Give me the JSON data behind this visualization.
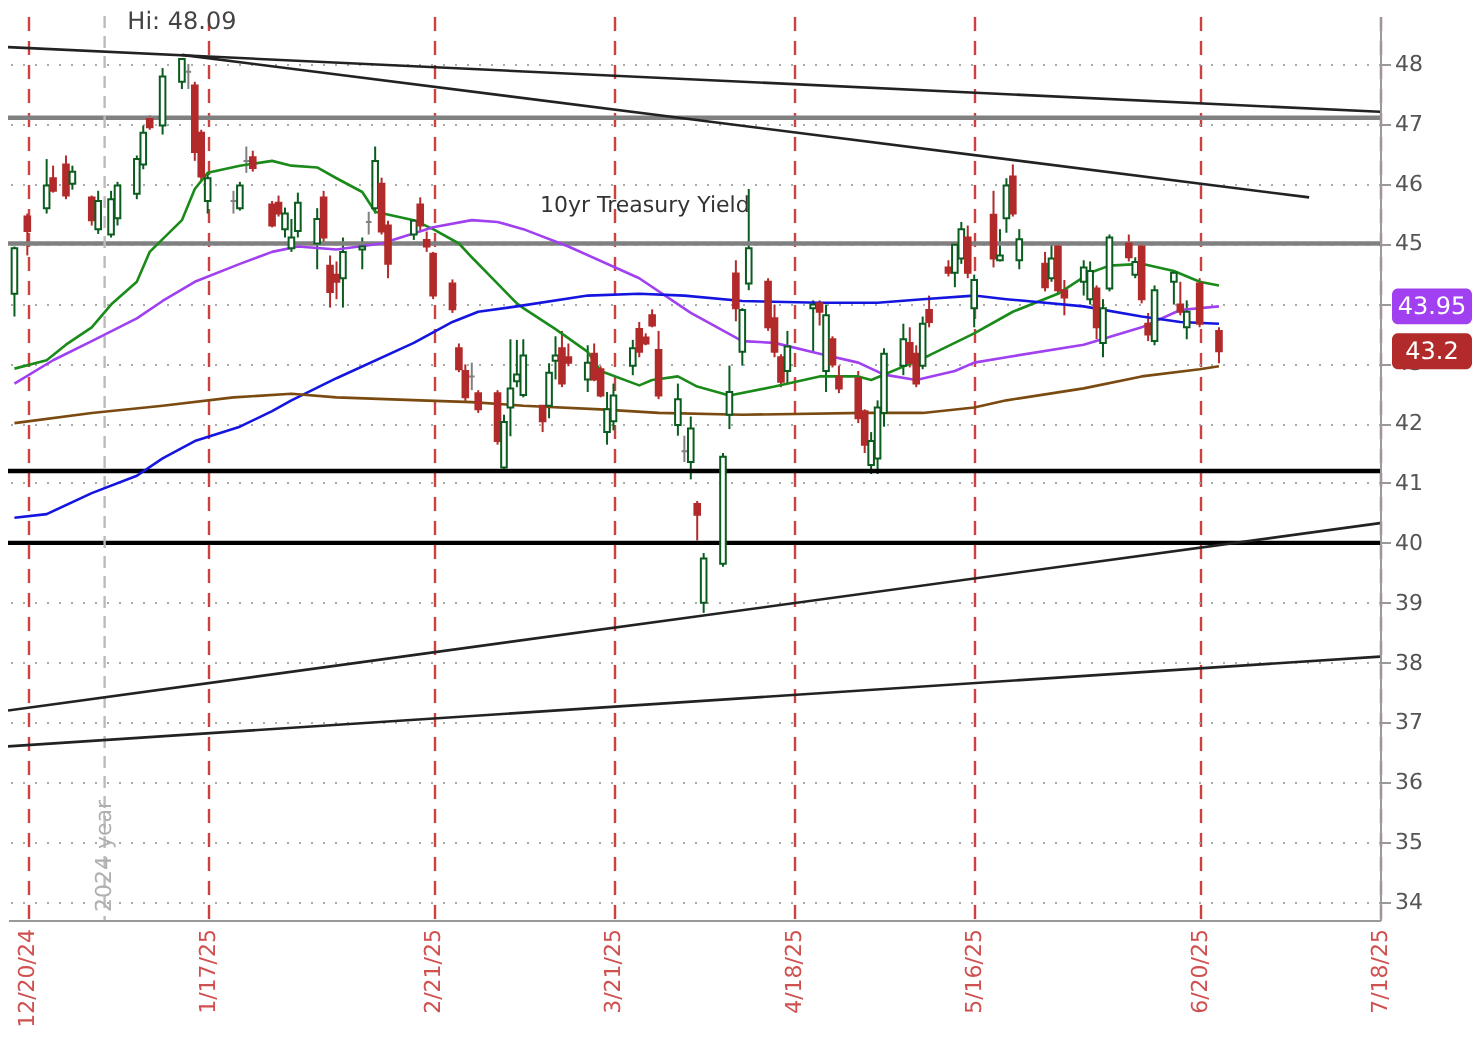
{
  "chart_data": {
    "type": "candlestick",
    "x": [
      "2024-12-18",
      "2024-12-20",
      "2024-12-23",
      "2024-12-24",
      "2024-12-26",
      "2024-12-27",
      "2024-12-30",
      "2024-12-31",
      "2025-01-02",
      "2025-01-03",
      "2025-01-06",
      "2025-01-07",
      "2025-01-08",
      "2025-01-10",
      "2025-01-13",
      "2025-01-14",
      "2025-01-15",
      "2025-01-16",
      "2025-01-17",
      "2025-01-21",
      "2025-01-22",
      "2025-01-23",
      "2025-01-24",
      "2025-01-27",
      "2025-01-28",
      "2025-01-29",
      "2025-01-30",
      "2025-01-31",
      "2025-02-03",
      "2025-02-04",
      "2025-02-05",
      "2025-02-06",
      "2025-02-07",
      "2025-02-10",
      "2025-02-11",
      "2025-02-12",
      "2025-02-13",
      "2025-02-14",
      "2025-02-18",
      "2025-02-19",
      "2025-02-20",
      "2025-02-21",
      "2025-02-24",
      "2025-02-25",
      "2025-02-26",
      "2025-02-27",
      "2025-02-28",
      "2025-03-03",
      "2025-03-04",
      "2025-03-05",
      "2025-03-06",
      "2025-03-07",
      "2025-03-10",
      "2025-03-11",
      "2025-03-12",
      "2025-03-13",
      "2025-03-14",
      "2025-03-17",
      "2025-03-18",
      "2025-03-19",
      "2025-03-20",
      "2025-03-21",
      "2025-03-24",
      "2025-03-25",
      "2025-03-26",
      "2025-03-27",
      "2025-03-28",
      "2025-03-31",
      "2025-04-01",
      "2025-04-02",
      "2025-04-03",
      "2025-04-04",
      "2025-04-07",
      "2025-04-08",
      "2025-04-09",
      "2025-04-10",
      "2025-04-11",
      "2025-04-14",
      "2025-04-15",
      "2025-04-16",
      "2025-04-17",
      "2025-04-21",
      "2025-04-22",
      "2025-04-23",
      "2025-04-24",
      "2025-04-25",
      "2025-04-28",
      "2025-04-29",
      "2025-04-30",
      "2025-05-01",
      "2025-05-02",
      "2025-05-05",
      "2025-05-06",
      "2025-05-07",
      "2025-05-08",
      "2025-05-09",
      "2025-05-12",
      "2025-05-13",
      "2025-05-14",
      "2025-05-15",
      "2025-05-16",
      "2025-05-19",
      "2025-05-20",
      "2025-05-21",
      "2025-05-22",
      "2025-05-23",
      "2025-05-27",
      "2025-05-28",
      "2025-05-29",
      "2025-05-30",
      "2025-06-02",
      "2025-06-03",
      "2025-06-04",
      "2025-06-05",
      "2025-06-06",
      "2025-06-09",
      "2025-06-10",
      "2025-06-11",
      "2025-06-12",
      "2025-06-13",
      "2025-06-16",
      "2025-06-17",
      "2025-06-18",
      "2025-06-20",
      "2025-06-23"
    ],
    "ohlc": [
      [
        44.16,
        44.95,
        43.78,
        44.92
      ],
      [
        45.45,
        45.5,
        44.8,
        45.21
      ],
      [
        45.59,
        46.41,
        45.5,
        45.97
      ],
      [
        46.09,
        46.3,
        45.85,
        45.88
      ],
      [
        46.32,
        46.47,
        45.74,
        45.8
      ],
      [
        46.0,
        46.3,
        45.9,
        46.2
      ],
      [
        45.77,
        45.8,
        45.3,
        45.39
      ],
      [
        45.24,
        45.88,
        45.16,
        45.71
      ],
      [
        45.15,
        45.88,
        45.1,
        45.74
      ],
      [
        45.42,
        46.03,
        45.3,
        45.97
      ],
      [
        45.83,
        46.47,
        45.74,
        46.41
      ],
      [
        46.32,
        46.97,
        46.24,
        46.85
      ],
      [
        47.08,
        47.14,
        46.9,
        46.94
      ],
      [
        46.97,
        47.93,
        46.82,
        47.79
      ],
      [
        47.7,
        48.09,
        47.58,
        48.08
      ],
      [
        47.87,
        48.0,
        47.58,
        47.87
      ],
      [
        47.64,
        47.7,
        46.38,
        46.53
      ],
      [
        46.85,
        46.9,
        46.03,
        46.12
      ],
      [
        45.71,
        46.18,
        45.5,
        46.09
      ],
      [
        45.71,
        45.88,
        45.5,
        45.71
      ],
      [
        45.59,
        46.03,
        45.55,
        45.97
      ],
      [
        46.38,
        46.62,
        46.18,
        46.38
      ],
      [
        46.44,
        46.55,
        46.2,
        46.26
      ],
      [
        45.65,
        45.71,
        45.27,
        45.3
      ],
      [
        45.68,
        45.8,
        45.45,
        45.5
      ],
      [
        45.24,
        45.6,
        45.1,
        45.5
      ],
      [
        44.92,
        45.41,
        44.86,
        45.1
      ],
      [
        45.21,
        45.85,
        45.1,
        45.68
      ],
      [
        45.0,
        45.59,
        44.57,
        45.41
      ],
      [
        45.77,
        45.88,
        45.0,
        45.1
      ],
      [
        44.63,
        44.8,
        43.93,
        44.19
      ],
      [
        44.48,
        44.7,
        44.07,
        44.36
      ],
      [
        44.42,
        45.1,
        43.93,
        44.86
      ],
      [
        44.9,
        45.1,
        44.57,
        44.95
      ],
      [
        45.36,
        45.53,
        45.15,
        45.36
      ],
      [
        45.59,
        46.62,
        45.5,
        46.38
      ],
      [
        46.0,
        46.1,
        45.15,
        45.2
      ],
      [
        45.3,
        45.38,
        44.42,
        44.66
      ],
      [
        45.15,
        45.4,
        45.06,
        45.38
      ],
      [
        45.65,
        45.77,
        45.2,
        45.3
      ],
      [
        45.06,
        45.2,
        44.86,
        44.95
      ],
      [
        44.83,
        44.86,
        44.07,
        44.13
      ],
      [
        44.33,
        44.4,
        43.84,
        43.9
      ],
      [
        43.25,
        43.33,
        42.85,
        42.9
      ],
      [
        42.87,
        42.98,
        42.37,
        42.43
      ],
      [
        42.78,
        43.01,
        42.55,
        42.78
      ],
      [
        42.5,
        42.55,
        42.17,
        42.23
      ],
      [
        42.5,
        42.55,
        41.64,
        41.7
      ],
      [
        41.26,
        42.14,
        41.2,
        42.02
      ],
      [
        42.26,
        43.4,
        41.78,
        42.58
      ],
      [
        42.7,
        43.39,
        42.6,
        42.81
      ],
      [
        42.47,
        43.4,
        42.43,
        43.13
      ],
      [
        42.29,
        42.3,
        41.85,
        42.03
      ],
      [
        42.29,
        43.0,
        42.08,
        42.84
      ],
      [
        43.04,
        43.45,
        42.73,
        43.13
      ],
      [
        43.25,
        43.54,
        42.6,
        42.66
      ],
      [
        43.1,
        43.33,
        42.95,
        43.01
      ],
      [
        42.73,
        43.3,
        42.52,
        43.01
      ],
      [
        43.16,
        43.33,
        42.7,
        42.73
      ],
      [
        42.9,
        42.95,
        42.43,
        42.46
      ],
      [
        41.85,
        42.52,
        41.64,
        42.23
      ],
      [
        42.03,
        42.66,
        41.88,
        42.46
      ],
      [
        42.96,
        43.39,
        42.8,
        43.25
      ],
      [
        43.57,
        43.69,
        43.1,
        43.19
      ],
      [
        43.43,
        43.5,
        43.3,
        43.33
      ],
      [
        43.8,
        43.9,
        43.6,
        43.63
      ],
      [
        43.22,
        43.54,
        42.4,
        42.46
      ],
      [
        41.97,
        42.66,
        41.79,
        42.4
      ],
      [
        41.53,
        41.79,
        41.35,
        41.53
      ],
      [
        41.35,
        42.11,
        41.06,
        41.91
      ],
      [
        40.65,
        40.7,
        40.04,
        40.47
      ],
      [
        39.0,
        39.83,
        38.83,
        39.74
      ],
      [
        39.65,
        41.5,
        39.6,
        41.44
      ],
      [
        42.14,
        42.96,
        41.9,
        42.52
      ],
      [
        44.5,
        44.72,
        43.7,
        43.92
      ],
      [
        43.19,
        43.92,
        42.96,
        43.89
      ],
      [
        44.33,
        45.91,
        44.22,
        44.92
      ],
      [
        44.36,
        44.42,
        43.54,
        43.6
      ],
      [
        43.75,
        43.98,
        43.1,
        43.19
      ],
      [
        43.1,
        43.15,
        42.6,
        42.69
      ],
      [
        42.87,
        43.54,
        42.66,
        43.28
      ],
      [
        43.92,
        44.05,
        43.19,
        43.98
      ],
      [
        44.0,
        44.05,
        43.63,
        43.86
      ],
      [
        42.87,
        43.98,
        42.52,
        43.8
      ],
      [
        43.4,
        43.45,
        42.93,
        42.98
      ],
      [
        42.78,
        42.96,
        42.5,
        42.58
      ],
      [
        42.75,
        42.87,
        42.0,
        42.08
      ],
      [
        42.2,
        42.23,
        41.5,
        41.64
      ],
      [
        41.3,
        41.85,
        41.15,
        41.7
      ],
      [
        41.41,
        42.38,
        41.15,
        42.26
      ],
      [
        42.17,
        43.25,
        41.94,
        43.16
      ],
      [
        42.96,
        43.66,
        42.8,
        43.4
      ],
      [
        43.34,
        43.6,
        42.93,
        43.01
      ],
      [
        43.16,
        43.3,
        42.6,
        42.66
      ],
      [
        42.96,
        43.78,
        42.9,
        43.66
      ],
      [
        43.89,
        44.13,
        43.6,
        43.69
      ],
      [
        44.6,
        44.72,
        44.45,
        44.51
      ],
      [
        44.51,
        45.0,
        44.27,
        44.98
      ],
      [
        44.75,
        45.36,
        44.66,
        45.24
      ],
      [
        45.1,
        45.3,
        44.42,
        44.51
      ],
      [
        43.92,
        44.48,
        43.6,
        44.39
      ],
      [
        45.48,
        45.88,
        44.6,
        44.75
      ],
      [
        44.72,
        45.24,
        44.7,
        44.8
      ],
      [
        45.42,
        46.09,
        45.18,
        45.97
      ],
      [
        46.12,
        46.32,
        45.45,
        45.5
      ],
      [
        44.72,
        45.24,
        44.57,
        45.07
      ],
      [
        44.66,
        44.86,
        44.2,
        44.27
      ],
      [
        44.42,
        45.0,
        44.36,
        44.75
      ],
      [
        44.95,
        45.0,
        44.16,
        44.22
      ],
      [
        44.22,
        44.39,
        43.8,
        44.1
      ],
      [
        44.36,
        44.72,
        44.13,
        44.6
      ],
      [
        44.07,
        44.7,
        43.98,
        44.54
      ],
      [
        44.25,
        44.3,
        43.4,
        43.6
      ],
      [
        43.34,
        44.07,
        43.1,
        43.92
      ],
      [
        44.25,
        45.15,
        44.2,
        45.1
      ],
      [
        45.0,
        45.15,
        44.7,
        44.77
      ],
      [
        44.48,
        44.77,
        44.42,
        44.69
      ],
      [
        44.95,
        45.0,
        44.0,
        44.07
      ],
      [
        43.66,
        43.84,
        43.37,
        43.48
      ],
      [
        43.37,
        44.3,
        43.3,
        44.22
      ],
      [
        44.36,
        44.55,
        43.98,
        44.51
      ],
      [
        43.98,
        44.36,
        43.8,
        43.86
      ],
      [
        43.6,
        44.05,
        43.4,
        43.86
      ],
      [
        44.33,
        44.42,
        43.6,
        43.66
      ],
      [
        43.54,
        43.6,
        43.0,
        43.2
      ]
    ],
    "colors": [
      "#0b5c1f",
      "#b22a2a",
      "#0b5c1f",
      "#b22a2a",
      "#b22a2a",
      "#0b5c1f",
      "#b22a2a",
      "#0b5c1f",
      "#0b5c1f",
      "#0b5c1f",
      "#0b5c1f",
      "#0b5c1f",
      "#b22a2a",
      "#0b5c1f",
      "#0b5c1f",
      "#808080",
      "#b22a2a",
      "#b22a2a",
      "#0b5c1f",
      "#808080",
      "#0b5c1f",
      "#808080",
      "#b22a2a",
      "#b22a2a",
      "#b22a2a",
      "#0b5c1f",
      "#0b5c1f",
      "#0b5c1f",
      "#0b5c1f",
      "#b22a2a",
      "#b22a2a",
      "#b22a2a",
      "#0b5c1f",
      "#0b5c1f",
      "#808080",
      "#0b5c1f",
      "#b22a2a",
      "#b22a2a",
      "#0b5c1f",
      "#b22a2a",
      "#b22a2a",
      "#b22a2a",
      "#b22a2a",
      "#b22a2a",
      "#b22a2a",
      "#808080",
      "#b22a2a",
      "#b22a2a",
      "#0b5c1f",
      "#0b5c1f",
      "#0b5c1f",
      "#0b5c1f",
      "#b22a2a",
      "#0b5c1f",
      "#0b5c1f",
      "#b22a2a",
      "#b22a2a",
      "#0b5c1f",
      "#b22a2a",
      "#b22a2a",
      "#0b5c1f",
      "#0b5c1f",
      "#0b5c1f",
      "#b22a2a",
      "#b22a2a",
      "#b22a2a",
      "#b22a2a",
      "#0b5c1f",
      "#808080",
      "#0b5c1f",
      "#b22a2a",
      "#0b5c1f",
      "#0b5c1f",
      "#0b5c1f",
      "#b22a2a",
      "#0b5c1f",
      "#0b5c1f",
      "#b22a2a",
      "#b22a2a",
      "#b22a2a",
      "#0b5c1f",
      "#0b5c1f",
      "#b22a2a",
      "#0b5c1f",
      "#b22a2a",
      "#b22a2a",
      "#b22a2a",
      "#b22a2a",
      "#0b5c1f",
      "#0b5c1f",
      "#0b5c1f",
      "#0b5c1f",
      "#b22a2a",
      "#b22a2a",
      "#0b5c1f",
      "#b22a2a",
      "#b22a2a",
      "#0b5c1f",
      "#0b5c1f",
      "#b22a2a",
      "#0b5c1f",
      "#b22a2a",
      "#0b5c1f",
      "#0b5c1f",
      "#b22a2a",
      "#0b5c1f",
      "#b22a2a",
      "#0b5c1f",
      "#b22a2a",
      "#b22a2a",
      "#0b5c1f",
      "#0b5c1f",
      "#b22a2a",
      "#0b5c1f",
      "#0b5c1f",
      "#b22a2a",
      "#0b5c1f",
      "#b22a2a",
      "#b22a2a",
      "#0b5c1f",
      "#0b5c1f",
      "#b22a2a",
      "#0b5c1f",
      "#b22a2a",
      "#b22a2a"
    ],
    "series": [
      {
        "type": "line",
        "color": "#1a8a1a",
        "x": [
          "2024-12-18",
          "2024-12-23",
          "2024-12-26",
          "2024-12-30",
          "2025-01-02",
          "2025-01-06",
          "2025-01-08",
          "2025-01-13",
          "2025-01-15",
          "2025-01-17",
          "2025-01-22",
          "2025-01-27",
          "2025-01-30",
          "2025-02-03",
          "2025-02-06",
          "2025-02-10",
          "2025-02-12",
          "2025-02-18",
          "2025-02-21",
          "2025-02-25",
          "2025-02-27",
          "2025-03-03",
          "2025-03-06",
          "2025-03-07",
          "2025-03-12",
          "2025-03-17",
          "2025-03-19",
          "2025-03-25",
          "2025-03-27",
          "2025-03-31",
          "2025-04-03",
          "2025-04-08",
          "2025-04-15",
          "2025-04-22",
          "2025-04-28",
          "2025-04-30",
          "2025-05-06",
          "2025-05-09",
          "2025-05-16",
          "2025-05-22",
          "2025-05-29",
          "2025-06-03",
          "2025-06-06",
          "2025-06-11",
          "2025-06-16",
          "2025-06-20",
          "2025-06-23"
        ],
        "values": [
          42.91,
          43.05,
          43.31,
          43.6,
          43.98,
          44.36,
          44.86,
          45.39,
          45.91,
          46.18,
          46.3,
          46.38,
          46.3,
          46.27,
          46.09,
          45.86,
          45.53,
          45.39,
          45.24,
          45.0,
          44.77,
          44.33,
          44.0,
          43.92,
          43.57,
          43.19,
          42.87,
          42.63,
          42.72,
          42.78,
          42.61,
          42.46,
          42.61,
          42.78,
          42.78,
          42.72,
          42.99,
          43.13,
          43.5,
          43.86,
          44.16,
          44.51,
          44.63,
          44.66,
          44.54,
          44.36,
          44.3
        ]
      },
      {
        "type": "line",
        "color": "#a040f0",
        "x": [
          "2024-12-18",
          "2024-12-24",
          "2024-12-30",
          "2025-01-06",
          "2025-01-10",
          "2025-01-15",
          "2025-01-22",
          "2025-01-27",
          "2025-01-31",
          "2025-02-06",
          "2025-02-13",
          "2025-02-21",
          "2025-02-27",
          "2025-03-03",
          "2025-03-07",
          "2025-03-14",
          "2025-03-25",
          "2025-04-02",
          "2025-04-10",
          "2025-04-15",
          "2025-04-22",
          "2025-04-28",
          "2025-05-02",
          "2025-05-07",
          "2025-05-13",
          "2025-05-16",
          "2025-05-21",
          "2025-06-02",
          "2025-06-11",
          "2025-06-17",
          "2025-06-23"
        ],
        "values": [
          42.66,
          43.05,
          43.37,
          43.75,
          44.04,
          44.36,
          44.66,
          44.86,
          44.95,
          44.9,
          45.0,
          45.27,
          45.39,
          45.36,
          45.24,
          44.95,
          44.42,
          43.84,
          43.37,
          43.34,
          43.16,
          43.01,
          42.81,
          42.72,
          42.87,
          43.01,
          43.1,
          43.31,
          43.6,
          43.89,
          43.95
        ]
      },
      {
        "type": "line",
        "color": "#1515e0",
        "x": [
          "2024-12-18",
          "2024-12-23",
          "2024-12-30",
          "2025-01-06",
          "2025-01-10",
          "2025-01-15",
          "2025-01-22",
          "2025-01-27",
          "2025-01-30",
          "2025-02-06",
          "2025-02-18",
          "2025-02-24",
          "2025-02-28",
          "2025-03-06",
          "2025-03-17",
          "2025-03-25",
          "2025-04-01",
          "2025-04-10",
          "2025-04-22",
          "2025-05-01",
          "2025-05-08",
          "2025-05-16",
          "2025-05-21",
          "2025-06-02",
          "2025-06-11",
          "2025-06-17",
          "2025-06-23"
        ],
        "values": [
          40.42,
          40.48,
          40.83,
          41.12,
          41.41,
          41.7,
          41.94,
          42.2,
          42.38,
          42.75,
          43.34,
          43.69,
          43.86,
          43.95,
          44.13,
          44.16,
          44.13,
          44.04,
          44.01,
          44.01,
          44.07,
          44.13,
          44.07,
          43.95,
          43.78,
          43.69,
          43.66
        ]
      },
      {
        "type": "line",
        "color": "#7a4a10",
        "x": [
          "2024-12-18",
          "2024-12-30",
          "2025-01-10",
          "2025-01-21",
          "2025-01-30",
          "2025-02-06",
          "2025-02-19",
          "2025-02-27",
          "2025-03-07",
          "2025-03-19",
          "2025-03-28",
          "2025-04-10",
          "2025-04-29",
          "2025-05-08",
          "2025-05-16",
          "2025-05-21",
          "2025-06-02",
          "2025-06-11",
          "2025-06-20",
          "2025-06-23"
        ],
        "values": [
          42.0,
          42.17,
          42.29,
          42.43,
          42.49,
          42.43,
          42.38,
          42.35,
          42.29,
          42.23,
          42.17,
          42.14,
          42.17,
          42.17,
          42.26,
          42.38,
          42.58,
          42.78,
          42.9,
          42.95
        ]
      },
      {
        "type": "line",
        "color": "#222222",
        "x": [
          "2024-12-17",
          "2025-07-18"
        ],
        "values": [
          48.28,
          47.2
        ]
      },
      {
        "type": "line",
        "color": "#222222",
        "x": [
          "2025-01-13",
          "2025-07-07"
        ],
        "values": [
          48.15,
          45.77
        ]
      },
      {
        "type": "line",
        "color": "#222222",
        "x": [
          "2024-12-17",
          "2025-07-18"
        ],
        "values": [
          37.2,
          40.33
        ]
      },
      {
        "type": "line",
        "color": "#222222",
        "x": [
          "2024-12-17",
          "2025-07-18"
        ],
        "values": [
          36.6,
          38.1
        ]
      }
    ],
    "ref_lines": [
      {
        "axis": "y",
        "value": 47.1,
        "color": "#808080"
      },
      {
        "axis": "y",
        "value": 45.0,
        "color": "#808080"
      },
      {
        "axis": "y",
        "value": 41.2,
        "color": "#000000"
      },
      {
        "axis": "y",
        "value": 40.0,
        "color": "#000000"
      },
      {
        "axis": "x",
        "value": "2025-01-01",
        "label": "2024 year",
        "color": "#bbbbbb",
        "line_style": "dashed"
      }
    ],
    "annotations": [
      "10yr Treasury Yield",
      {
        "text": "Hi: 48.09",
        "x": "2025-01-13",
        "y": 48.09
      },
      "43.95",
      "43.2"
    ],
    "xlim": [
      "2024-12-17",
      "2025-07-18"
    ],
    "xticks": [
      {
        "value": "2024-12-20",
        "label": "12/20/24"
      },
      {
        "value": "2025-01-17",
        "label": "1/17/25"
      },
      {
        "value": "2025-02-21",
        "label": "2/21/25"
      },
      {
        "value": "2025-03-21",
        "label": "3/21/25"
      },
      {
        "value": "2025-04-18",
        "label": "4/18/25"
      },
      {
        "value": "2025-05-16",
        "label": "5/16/25"
      },
      {
        "value": "2025-06-20",
        "label": "6/20/25"
      },
      {
        "value": "2025-07-18",
        "label": "7/18/25"
      }
    ],
    "ylim": [
      33.7,
      48.8
    ],
    "yticks": [
      34,
      35,
      36,
      37,
      38,
      39,
      40,
      41,
      42,
      43,
      {
        "value": 44,
        "label": null
      },
      45,
      46,
      47,
      48
    ],
    "grid": true
  }
}
